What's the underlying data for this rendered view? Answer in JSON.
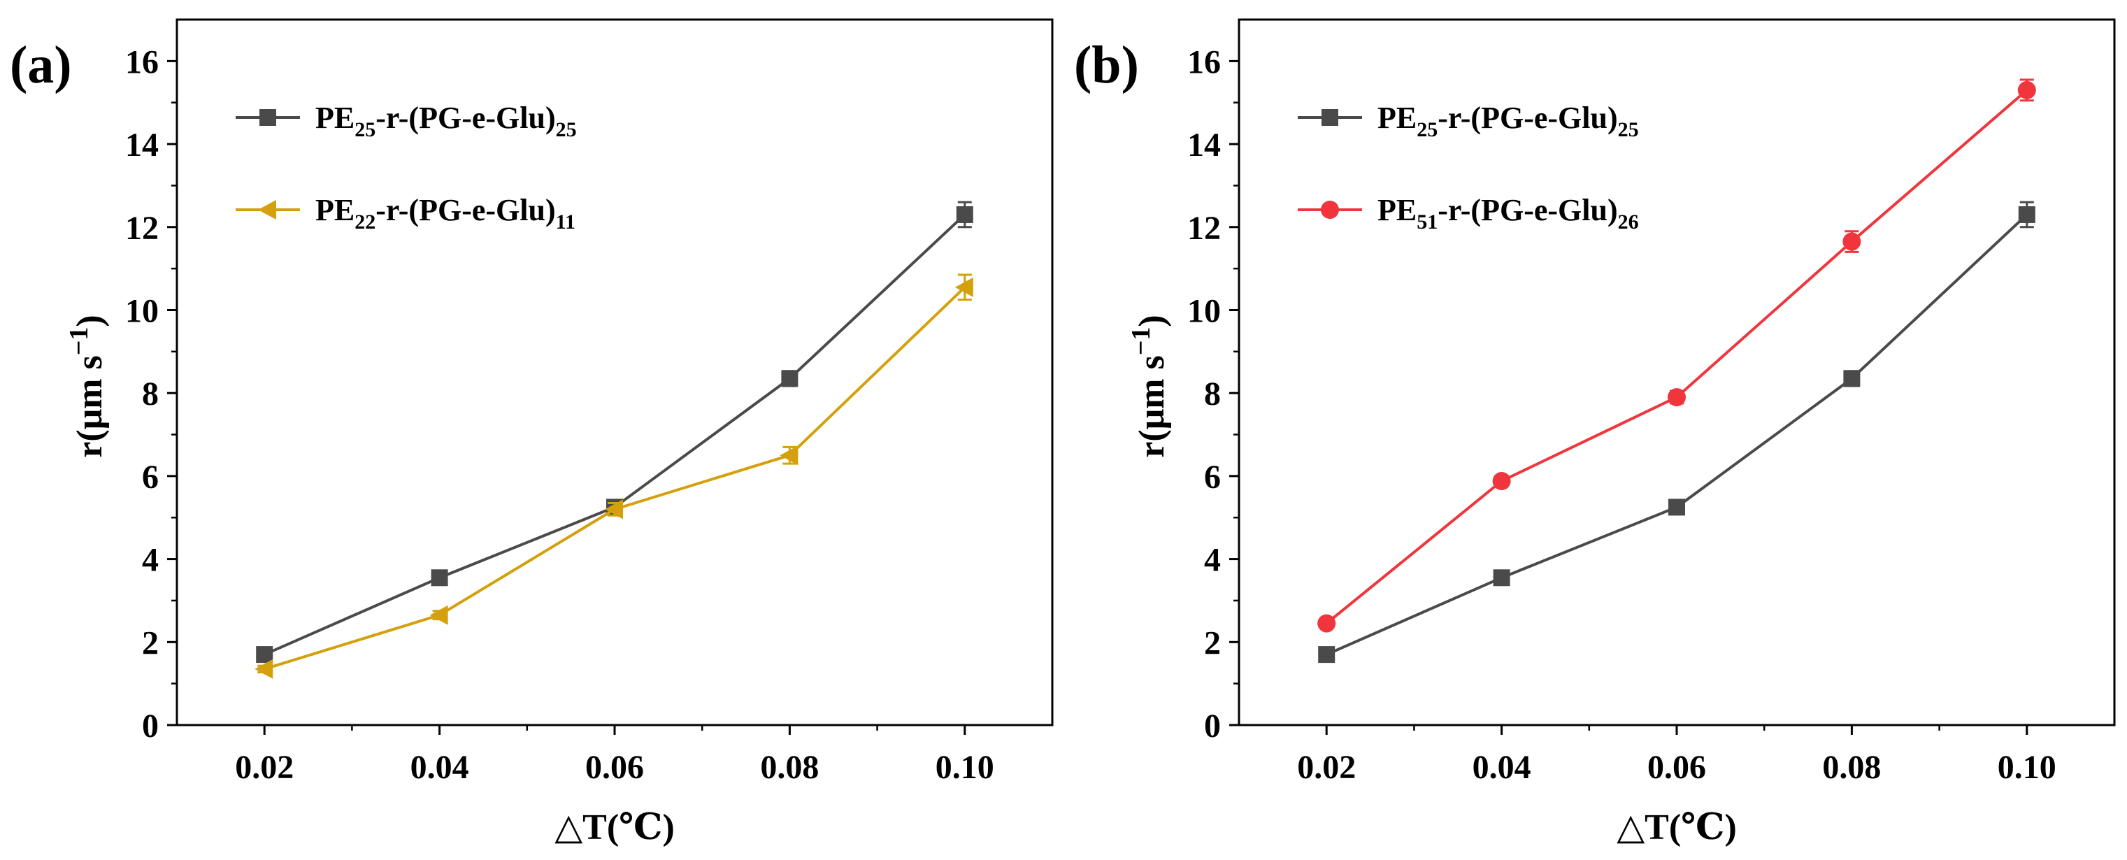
{
  "chart_data": [
    {
      "type": "line",
      "panel_label": "(a)",
      "xlabel": "△T(℃)",
      "ylabel": "r(μm s",
      "ylabel_sup": "−1",
      "ylabel_close": ")",
      "x": [
        0.02,
        0.04,
        0.06,
        0.08,
        0.1
      ],
      "xtick_labels": [
        "0.02",
        "0.04",
        "0.06",
        "0.08",
        "0.10"
      ],
      "xlim": [
        0.01,
        0.11
      ],
      "ylim": [
        0,
        17
      ],
      "yticks": [
        0,
        2,
        4,
        6,
        8,
        10,
        12,
        14,
        16
      ],
      "ytick_labels": [
        "0",
        "2",
        "4",
        "6",
        "8",
        "10",
        "12",
        "14",
        "16"
      ],
      "grid": false,
      "legend_position": "top-left",
      "series": [
        {
          "name": "PE25-r-(PG-e-Glu)25",
          "label_parts": [
            "PE",
            "25",
            "-r-(PG-e-Glu)",
            "25"
          ],
          "values": [
            1.7,
            3.55,
            5.25,
            8.35,
            12.3
          ],
          "errors": [
            0.1,
            0.12,
            0.15,
            0.18,
            0.3
          ],
          "color": "#4a4a4a",
          "marker": "square"
        },
        {
          "name": "PE22-r-(PG-e-Glu)11",
          "label_parts": [
            "PE",
            "22",
            "-r-(PG-e-Glu)",
            "11"
          ],
          "values": [
            1.35,
            2.65,
            5.2,
            6.5,
            10.55
          ],
          "errors": [
            0.08,
            0.1,
            0.15,
            0.2,
            0.3
          ],
          "color": "#d4a00c",
          "marker": "triangle-left"
        }
      ]
    },
    {
      "type": "line",
      "panel_label": "(b)",
      "xlabel": "△T(℃)",
      "ylabel": "r(μm s",
      "ylabel_sup": "−1",
      "ylabel_close": ")",
      "x": [
        0.02,
        0.04,
        0.06,
        0.08,
        0.1
      ],
      "xtick_labels": [
        "0.02",
        "0.04",
        "0.06",
        "0.08",
        "0.10"
      ],
      "xlim": [
        0.01,
        0.11
      ],
      "ylim": [
        0,
        17
      ],
      "yticks": [
        0,
        2,
        4,
        6,
        8,
        10,
        12,
        14,
        16
      ],
      "ytick_labels": [
        "0",
        "2",
        "4",
        "6",
        "8",
        "10",
        "12",
        "14",
        "16"
      ],
      "grid": false,
      "legend_position": "top-left",
      "series": [
        {
          "name": "PE25-r-(PG-e-Glu)25",
          "label_parts": [
            "PE",
            "25",
            "-r-(PG-e-Glu)",
            "25"
          ],
          "values": [
            1.7,
            3.55,
            5.25,
            8.35,
            12.3
          ],
          "errors": [
            0.1,
            0.12,
            0.15,
            0.18,
            0.3
          ],
          "color": "#4a4a4a",
          "marker": "square"
        },
        {
          "name": "PE51-r-(PG-e-Glu)26",
          "label_parts": [
            "PE",
            "51",
            "-r-(PG-e-Glu)",
            "26"
          ],
          "values": [
            2.45,
            5.88,
            7.9,
            11.65,
            15.3
          ],
          "errors": [
            0.1,
            0.12,
            0.15,
            0.25,
            0.25
          ],
          "color": "#f0353d",
          "marker": "circle"
        }
      ]
    }
  ]
}
